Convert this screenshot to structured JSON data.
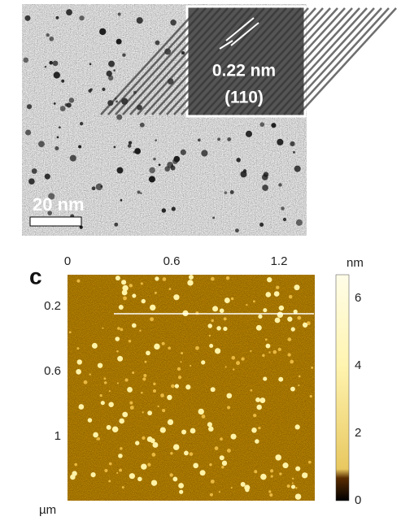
{
  "tem": {
    "scale_bar": "20 nm",
    "inset_spacing": "0.22 nm",
    "inset_plane": "(110)"
  },
  "afm": {
    "panel": "c",
    "x_ticks": [
      "0",
      "0.6",
      "1.2"
    ],
    "y_ticks": [
      "0.2",
      "0.6",
      "1"
    ],
    "y_unit": "µm",
    "colorbar_unit": "nm",
    "colorbar_ticks": [
      "6",
      "4",
      "2",
      "0"
    ]
  }
}
